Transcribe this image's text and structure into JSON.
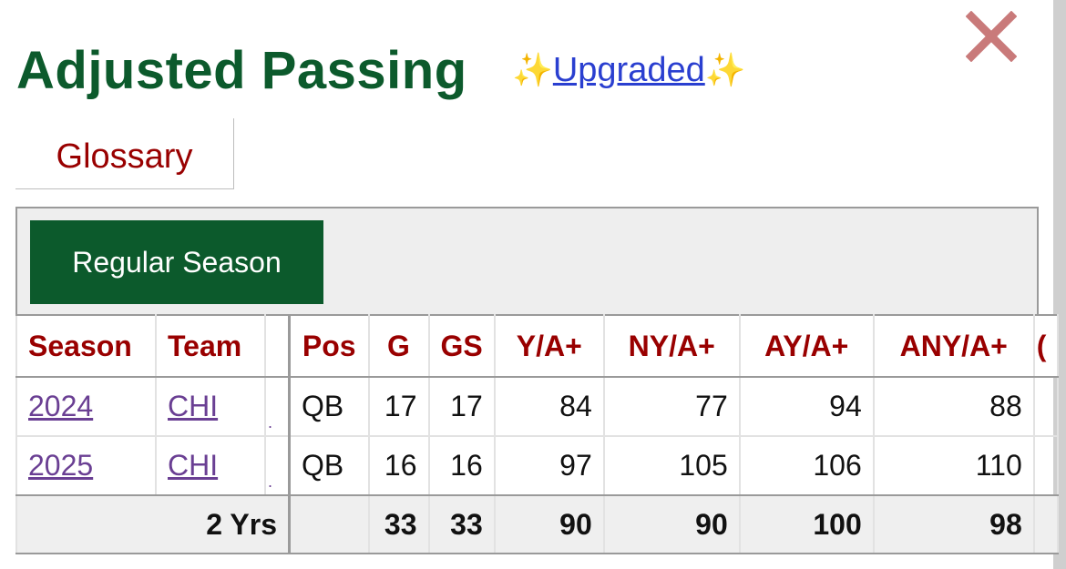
{
  "header": {
    "title": "Adjusted Passing",
    "sparkle": "✨",
    "upgraded_link": "Upgraded"
  },
  "tabs": {
    "glossary": "Glossary"
  },
  "filter": {
    "regular_season": "Regular Season"
  },
  "table": {
    "columns": [
      "Season",
      "Team",
      "Pos",
      "G",
      "GS",
      "Y/A+",
      "NY/A+",
      "AY/A+",
      "ANY/A+"
    ],
    "truncated_column_char": "(",
    "rows": [
      {
        "season": "2024",
        "team": "CHI",
        "marker": ".",
        "pos": "QB",
        "g": "17",
        "gs": "17",
        "ya": "84",
        "nya": "77",
        "aya": "94",
        "anya": "88"
      },
      {
        "season": "2025",
        "team": "CHI",
        "marker": ".",
        "pos": "QB",
        "g": "16",
        "gs": "16",
        "ya": "97",
        "nya": "105",
        "aya": "106",
        "anya": "110"
      }
    ],
    "totals": {
      "label": "2 Yrs",
      "pos": "",
      "g": "33",
      "gs": "33",
      "ya": "90",
      "nya": "90",
      "aya": "100",
      "anya": "98"
    }
  },
  "colors": {
    "title_green": "#0c5a2c",
    "header_red": "#990000",
    "link_purple": "#6a3f93",
    "link_blue": "#2a3fd0",
    "close_pink": "#c97a7a"
  },
  "icons": {
    "close": "close-icon"
  }
}
